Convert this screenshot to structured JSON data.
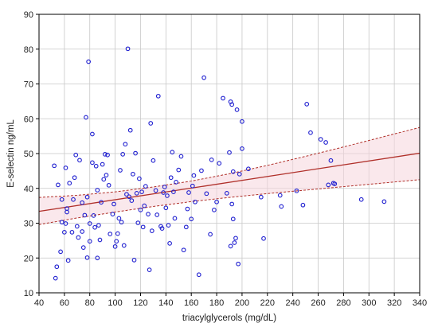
{
  "chart_data": {
    "type": "scatter",
    "xlabel": "triacylglycerols (mg/dL)",
    "ylabel": "E-selectin ng/mL",
    "xlim": [
      40,
      340
    ],
    "ylim": [
      10,
      90
    ],
    "x_ticks": [
      40,
      60,
      80,
      100,
      120,
      140,
      160,
      180,
      200,
      220,
      240,
      260,
      280,
      300,
      320,
      340
    ],
    "y_ticks": [
      10,
      20,
      30,
      40,
      50,
      60,
      70,
      80,
      90
    ],
    "grid": true,
    "legend": "none",
    "points": {
      "x": [
        52,
        53,
        54,
        55,
        57,
        58,
        58,
        60,
        61,
        61,
        62,
        62,
        63,
        64,
        66,
        67,
        68,
        69,
        70,
        71,
        72,
        74,
        74,
        75,
        76,
        77,
        78,
        78,
        79,
        80,
        80,
        82,
        82,
        83,
        84,
        85,
        86,
        86,
        87,
        88,
        89,
        90,
        91,
        92,
        93,
        94,
        95,
        96,
        98,
        99,
        100,
        101,
        102,
        103,
        104,
        105,
        106,
        107,
        108,
        109,
        110,
        111,
        112,
        113,
        114,
        115,
        116,
        117,
        118,
        119,
        120,
        121,
        122,
        123,
        124,
        126,
        127,
        128,
        129,
        130,
        132,
        133,
        134,
        136,
        137,
        138,
        139,
        140,
        141,
        142,
        143,
        144,
        145,
        146,
        147,
        148,
        150,
        152,
        154,
        156,
        157,
        158,
        160,
        161,
        162,
        163,
        166,
        168,
        170,
        172,
        175,
        176,
        178,
        180,
        182,
        185,
        188,
        190,
        191,
        192,
        193,
        195,
        197,
        200
      ],
      "y": [
        46.5,
        14.2,
        17.5,
        41,
        21.8,
        36.8,
        30.3,
        27.4,
        45.9,
        29.9,
        33.2,
        34.2,
        19.3,
        41.5,
        27.4,
        36.8,
        43.1,
        49.6,
        29.1,
        25.9,
        48.1,
        35.9,
        27.6,
        23,
        32.3,
        60.4,
        20.1,
        37.5,
        76.4,
        24.8,
        29.9,
        47.4,
        55.6,
        32.2,
        28.8,
        46.4,
        39.5,
        20,
        29.4,
        25.2,
        36,
        46.9,
        42.6,
        49.8,
        43.8,
        49.6,
        40.9,
        26.9,
        32.6,
        35.5,
        23.3,
        24.8,
        27,
        31.4,
        45.2,
        30.3,
        49.8,
        23.6,
        52.7,
        38.3,
        80.1,
        37.6,
        56.7,
        36.5,
        44.1,
        19.4,
        50.1,
        38.6,
        30.1,
        42.8,
        33.8,
        39,
        28.9,
        35,
        40.6,
        32.6,
        16.6,
        58.7,
        27.8,
        48,
        39.4,
        32.4,
        66.5,
        29.1,
        28.5,
        38.8,
        40.4,
        34.4,
        37.9,
        29.4,
        24.2,
        43.1,
        50.4,
        39,
        31.4,
        41.8,
        45.3,
        49.2,
        22.3,
        28.9,
        34.1,
        38.8,
        31.2,
        40.7,
        43.7,
        36.1,
        15.2,
        45.1,
        71.8,
        38.5,
        26.8,
        48.2,
        33.8,
        36.1,
        47.2,
        65.9,
        38.6,
        50.3,
        23.4,
        35.5,
        44.8,
        25.7,
        18.3,
        59.2
      ],
      "x_extra": [
        191,
        192,
        193,
        194,
        196,
        198,
        200,
        205,
        215,
        217,
        230,
        231,
        243,
        248,
        251,
        254,
        262,
        266,
        268,
        270,
        272,
        273,
        294,
        312
      ],
      "y_extra": [
        64.9,
        64.1,
        31.2,
        24.4,
        62.6,
        44.1,
        51.4,
        45.6,
        37.5,
        25.6,
        38,
        34.8,
        39.3,
        35.2,
        64.2,
        56,
        54.1,
        53.2,
        41,
        48,
        41.5,
        41.3,
        36.8,
        36.2
      ]
    },
    "fit_line": {
      "x": [
        40,
        340
      ],
      "y": [
        33.4,
        50.1
      ]
    },
    "confidence_band": {
      "x": [
        40,
        70,
        100,
        130,
        160,
        190,
        220,
        250,
        280,
        310,
        340
      ],
      "upper": [
        37.4,
        38.0,
        39.0,
        40.4,
        42.1,
        44.2,
        46.6,
        49.2,
        51.9,
        54.7,
        57.5
      ],
      "lower": [
        29.6,
        31.5,
        33.2,
        34.8,
        36.2,
        37.4,
        38.5,
        39.5,
        40.5,
        41.5,
        42.5
      ]
    },
    "colors": {
      "points": "#1f1fd0",
      "fit_line": "#b0302a",
      "confidence": "#b0302a",
      "band_fill": "#f6d6dc",
      "grid": "#c8c8c8",
      "axis": "#000000"
    }
  }
}
